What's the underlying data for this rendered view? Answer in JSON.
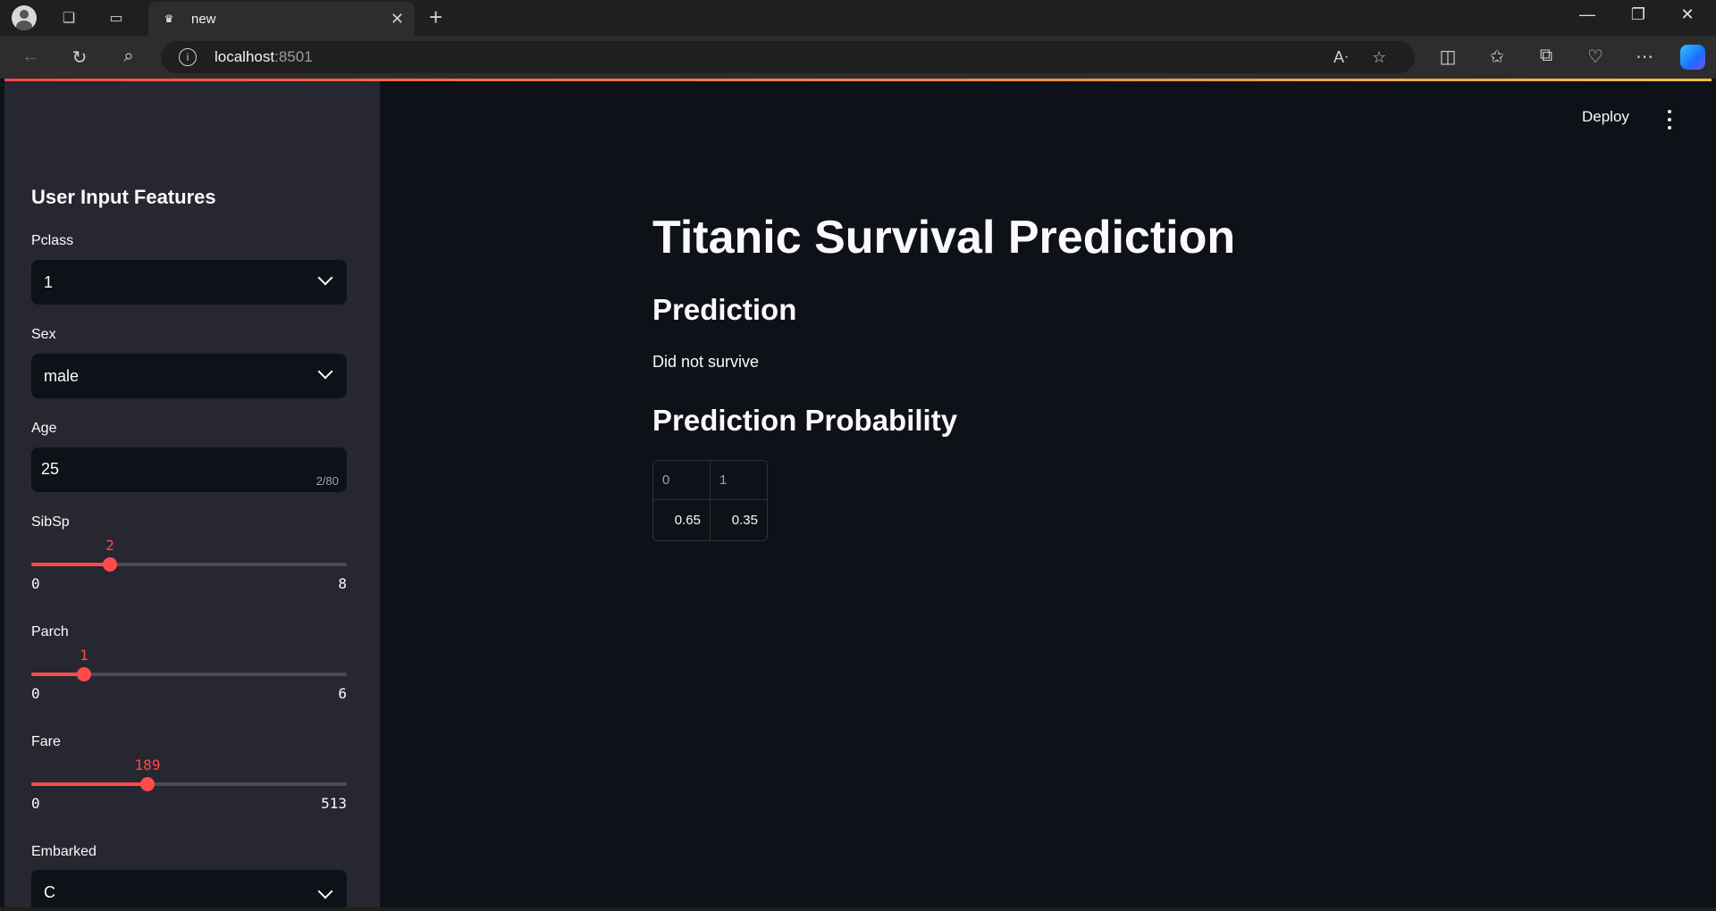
{
  "browser": {
    "tab_title": "new",
    "url_host": "localhost",
    "url_port": ":8501"
  },
  "header": {
    "deploy_label": "Deploy"
  },
  "sidebar": {
    "title": "User Input Features",
    "pclass": {
      "label": "Pclass",
      "value": "1"
    },
    "sex": {
      "label": "Sex",
      "value": "male"
    },
    "age": {
      "label": "Age",
      "value": "25",
      "counter": "2/80"
    },
    "sibsp": {
      "label": "SibSp",
      "value": 2,
      "value_text": "2",
      "min": "0",
      "max": "8"
    },
    "parch": {
      "label": "Parch",
      "value": 1,
      "value_text": "1",
      "min": "0",
      "max": "6"
    },
    "fare": {
      "label": "Fare",
      "value": 189,
      "value_text": "189",
      "min": "0",
      "max": "513"
    },
    "embarked": {
      "label": "Embarked",
      "value": "C"
    }
  },
  "main": {
    "title": "Titanic Survival Prediction",
    "prediction_heading": "Prediction",
    "prediction_text": "Did not survive",
    "probability_heading": "Prediction Probability",
    "probability_table": {
      "columns": [
        "0",
        "1"
      ],
      "values": [
        "0.65",
        "0.35"
      ]
    }
  },
  "colors": {
    "accent": "#ff4b4b",
    "sidebar_bg": "#262730",
    "main_bg": "#0e1117"
  }
}
